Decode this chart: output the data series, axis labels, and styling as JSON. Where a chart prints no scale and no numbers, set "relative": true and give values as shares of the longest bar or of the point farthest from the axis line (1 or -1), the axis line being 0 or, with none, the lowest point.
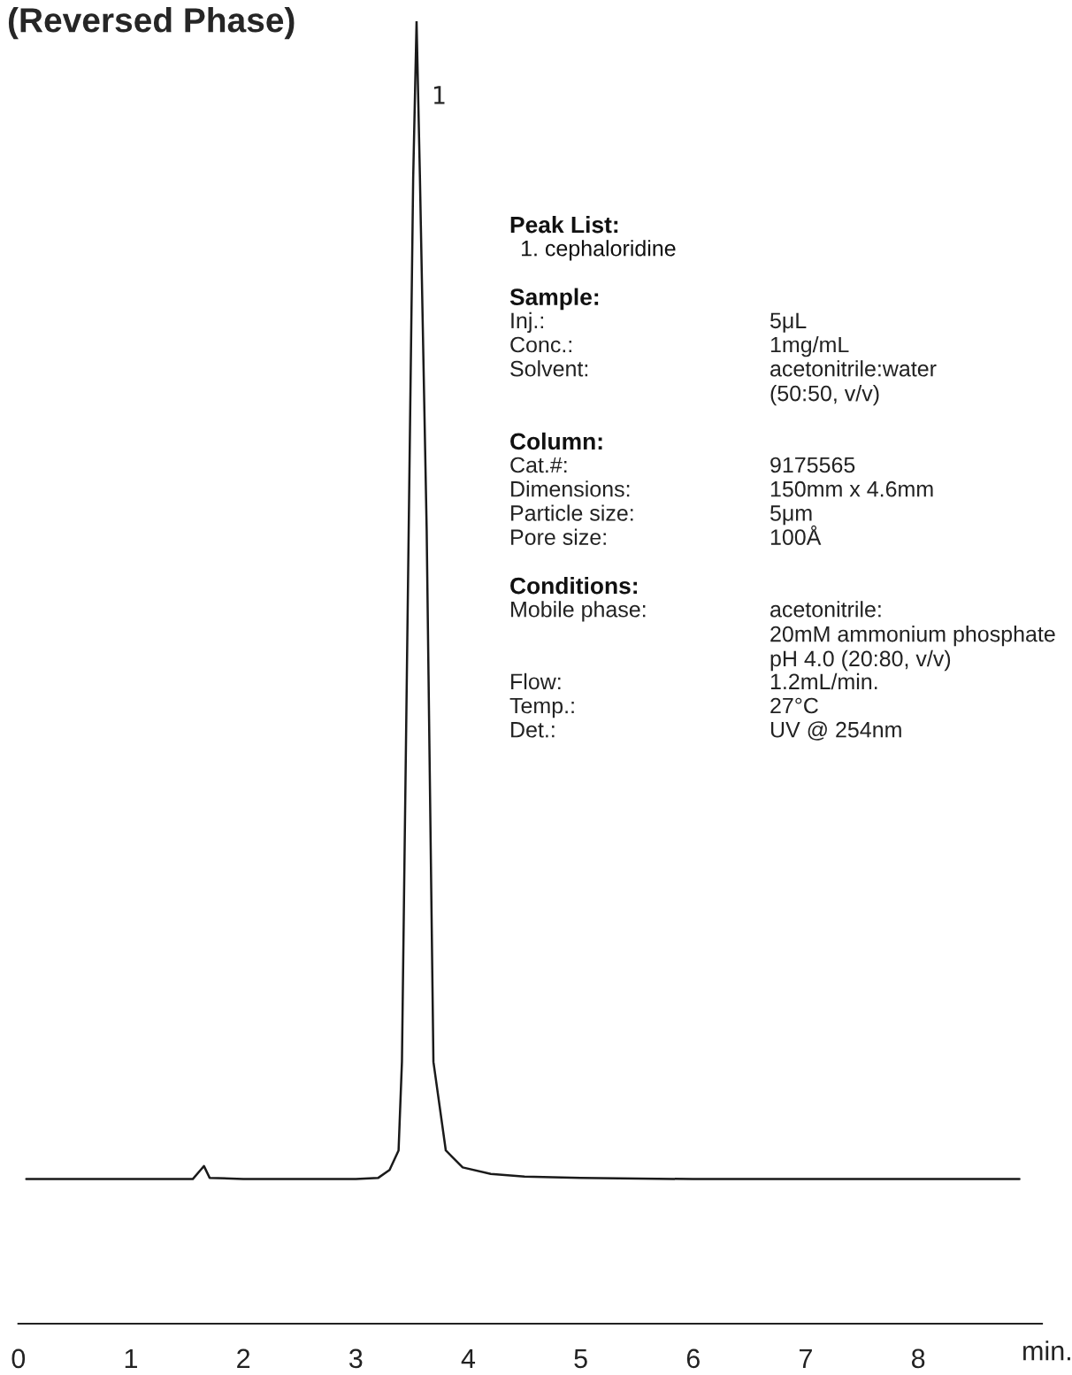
{
  "chart_data": {
    "type": "line",
    "title": "(Reversed Phase)",
    "xlabel": "min.",
    "relative": true,
    "x": [
      0.07,
      1.0,
      1.55,
      1.62,
      1.65,
      1.7,
      2.0,
      3.0,
      3.2,
      3.3,
      3.38,
      3.41,
      3.47,
      3.51,
      3.54,
      3.57,
      3.63,
      3.69,
      3.8,
      3.95,
      4.2,
      4.5,
      5.0,
      6.0,
      7.0,
      8.0,
      8.9
    ],
    "values": [
      0.111,
      0.111,
      0.111,
      0.118,
      0.121,
      0.112,
      0.111,
      0.111,
      0.112,
      0.118,
      0.133,
      0.201,
      0.609,
      0.88,
      1.0,
      0.88,
      0.609,
      0.201,
      0.133,
      0.12,
      0.115,
      0.113,
      0.112,
      0.111,
      0.111,
      0.111,
      0.111
    ],
    "color": "#1a1a1a",
    "xlim": [
      0,
      9.1
    ],
    "xticks": [
      0,
      1,
      2,
      3,
      4,
      5,
      6,
      7,
      8
    ],
    "annotations": [
      {
        "text": "1",
        "x": 3.54,
        "y": 1.0
      },
      "Peak List:",
      "  1. cephaloridine",
      "Sample:",
      "Inj.:\t5μL",
      "Conc.:\t1mg/mL",
      "Solvent:\tacetonitrile:water\n(50:50, v/v)",
      "Column:",
      "Cat.#:\t9175565",
      "Dimensions:\t150mm x 4.6mm",
      "Particle size:\t5μm",
      "Pore size:\t100Å",
      "Conditions:",
      "Mobile phase:\tacetonitrile:\n20mM ammonium phosphate\npH 4.0 (20:80, v/v)",
      "Flow:\t1.2mL/min.",
      "Temp.:\t27°C",
      "Det.:\tUV @ 254nm"
    ]
  }
}
